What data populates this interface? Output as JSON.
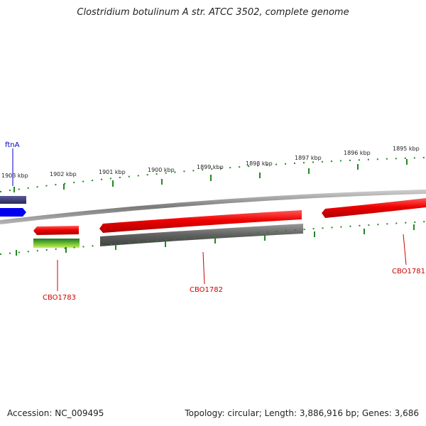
{
  "title": "Clostridium botulinum A str. ATCC 3502, complete genome",
  "footer": {
    "accession": "Accession: NC_009495",
    "summary": "Topology: circular; Length: 3,886,916 bp; Genes: 3,686"
  },
  "ruler": {
    "tick_labels": [
      "1903 kbp",
      "1902 kbp",
      "1901 kbp",
      "1900 kbp",
      "1899 kbp",
      "1898 kbp",
      "1897 kbp",
      "1896 kbp",
      "1895 kbp"
    ]
  },
  "genes": {
    "forward": [
      {
        "label": "ftnA",
        "color": "#0000ee"
      }
    ],
    "reverse": [
      {
        "label": "CBO1783",
        "color": "#ee0000"
      },
      {
        "label": "CBO1782",
        "color": "#ee0000"
      },
      {
        "label": "CBO1781",
        "color": "#ee0000"
      }
    ]
  },
  "colors": {
    "gene_red": "#ee0000",
    "gene_blue": "#0000ee",
    "feature_navy": "#3a3a7a",
    "feature_gray": "#606060",
    "feature_green": "#44aa22",
    "backbone": "#808080",
    "ticks": "#228822",
    "label_red": "#cc0000",
    "label_blue": "#0000cc"
  }
}
